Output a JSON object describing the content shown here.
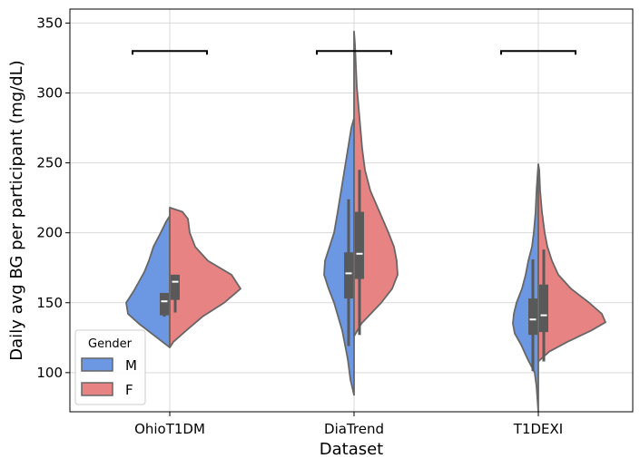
{
  "chart_data": {
    "type": "violin",
    "title": "",
    "xlabel": "Dataset",
    "ylabel": "Daily avg BG per participant (mg/dL)",
    "ylim": [
      72,
      360
    ],
    "yticks": [
      100,
      150,
      200,
      250,
      300,
      350
    ],
    "categories": [
      "OhioT1DM",
      "DiaTrend",
      "T1DEXI"
    ],
    "grid": true,
    "legend": {
      "title": "Gender",
      "placement": "lower-left",
      "entries": [
        {
          "label": "M",
          "color": "#6c97e2"
        },
        {
          "label": "F",
          "color": "#e78483"
        }
      ]
    },
    "colors": {
      "M": "#6c97e2",
      "F": "#e78483",
      "outline": "#666666",
      "box": "#595959"
    },
    "significance_bracket_y": 330,
    "series": [
      {
        "name": "M",
        "violins": [
          {
            "category": "OhioT1DM",
            "profile": [
              [
                118,
                0
              ],
              [
                122,
                8
              ],
              [
                128,
                20
              ],
              [
                135,
                34
              ],
              [
                142,
                46
              ],
              [
                150,
                48
              ],
              [
                158,
                40
              ],
              [
                165,
                34
              ],
              [
                172,
                28
              ],
              [
                180,
                23
              ],
              [
                190,
                18
              ],
              [
                200,
                10
              ],
              [
                208,
                4
              ],
              [
                212,
                0
              ]
            ],
            "box": {
              "q1": 141,
              "median": 151,
              "q3": 157,
              "whisker_low": 140,
              "whisker_high": 157
            }
          },
          {
            "category": "DiaTrend",
            "profile": [
              [
                84,
                0
              ],
              [
                95,
                4
              ],
              [
                110,
                7
              ],
              [
                130,
                13
              ],
              [
                150,
                22
              ],
              [
                160,
                28
              ],
              [
                170,
                33
              ],
              [
                180,
                32
              ],
              [
                190,
                27
              ],
              [
                200,
                22
              ],
              [
                215,
                18
              ],
              [
                235,
                13
              ],
              [
                255,
                8
              ],
              [
                275,
                3
              ],
              [
                282,
                0
              ]
            ],
            "box": {
              "q1": 153,
              "median": 171,
              "q3": 186,
              "whisker_low": 119,
              "whisker_high": 224
            }
          },
          {
            "category": "T1DEXI",
            "profile": [
              [
                72,
                0
              ],
              [
                90,
                2
              ],
              [
                100,
                4
              ],
              [
                110,
                12
              ],
              [
                120,
                19
              ],
              [
                128,
                26
              ],
              [
                135,
                28
              ],
              [
                142,
                27
              ],
              [
                150,
                24
              ],
              [
                160,
                18
              ],
              [
                170,
                14
              ],
              [
                180,
                11
              ],
              [
                190,
                7
              ],
              [
                200,
                5
              ],
              [
                215,
                3
              ],
              [
                230,
                2
              ],
              [
                240,
                1
              ],
              [
                249,
                0
              ]
            ],
            "box": {
              "q1": 127,
              "median": 138,
              "q3": 153,
              "whisker_low": 101,
              "whisker_high": 181
            }
          }
        ]
      },
      {
        "name": "F",
        "violins": [
          {
            "category": "OhioT1DM",
            "profile": [
              [
                118,
                0
              ],
              [
                122,
                4
              ],
              [
                130,
                18
              ],
              [
                140,
                36
              ],
              [
                150,
                60
              ],
              [
                160,
                78
              ],
              [
                170,
                68
              ],
              [
                180,
                42
              ],
              [
                190,
                28
              ],
              [
                200,
                22
              ],
              [
                210,
                20
              ],
              [
                215,
                14
              ],
              [
                218,
                0
              ]
            ],
            "box": {
              "q1": 152,
              "median": 165,
              "q3": 170,
              "whisker_low": 143,
              "whisker_high": 170
            }
          },
          {
            "category": "DiaTrend",
            "profile": [
              [
                126,
                0
              ],
              [
                135,
                8
              ],
              [
                150,
                30
              ],
              [
                160,
                42
              ],
              [
                170,
                48
              ],
              [
                180,
                47
              ],
              [
                190,
                44
              ],
              [
                200,
                38
              ],
              [
                215,
                28
              ],
              [
                230,
                18
              ],
              [
                245,
                12
              ],
              [
                260,
                9
              ],
              [
                275,
                7
              ],
              [
                290,
                5
              ],
              [
                305,
                3
              ],
              [
                320,
                2
              ],
              [
                335,
                1
              ],
              [
                344,
                0
              ]
            ],
            "box": {
              "q1": 167,
              "median": 185,
              "q3": 215,
              "whisker_low": 127,
              "whisker_high": 245
            }
          },
          {
            "category": "T1DEXI",
            "profile": [
              [
                108,
                0
              ],
              [
                115,
                12
              ],
              [
                122,
                32
              ],
              [
                130,
                58
              ],
              [
                136,
                74
              ],
              [
                142,
                70
              ],
              [
                150,
                56
              ],
              [
                160,
                36
              ],
              [
                170,
                22
              ],
              [
                180,
                15
              ],
              [
                190,
                10
              ],
              [
                200,
                7
              ],
              [
                215,
                4
              ],
              [
                230,
                2
              ],
              [
                245,
                1
              ],
              [
                249,
                0
              ]
            ],
            "box": {
              "q1": 129,
              "median": 141,
              "q3": 163,
              "whisker_low": 108,
              "whisker_high": 188
            }
          }
        ]
      }
    ]
  }
}
